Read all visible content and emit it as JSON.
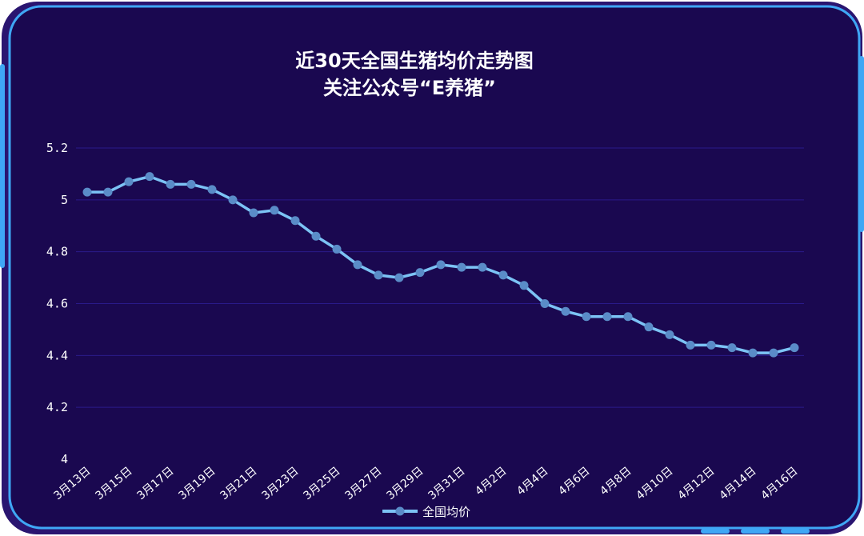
{
  "colors": {
    "background": "#1a0850",
    "frame": "#3fa7f5",
    "frame_outer": "#2a1570",
    "grid": "#2a1a8a",
    "line": "#7cc3f5",
    "marker": "#5a8cc8",
    "text": "#ffffff"
  },
  "chart_data": {
    "type": "line",
    "title": "近30天全国生猪均价走势图",
    "subtitle": "关注公众号“E养猪”",
    "xlabel": "",
    "ylabel": "",
    "ylim": [
      4,
      5.2
    ],
    "yticks": [
      "4",
      "4.2",
      "4.4",
      "4.6",
      "4.8",
      "5",
      "5.2"
    ],
    "ytick_values": [
      4,
      4.2,
      4.4,
      4.6,
      4.8,
      5,
      5.2
    ],
    "grid": true,
    "legend_position": "bottom-center",
    "categories": [
      "3月13日",
      "3月14日",
      "3月15日",
      "3月16日",
      "3月17日",
      "3月18日",
      "3月19日",
      "3月20日",
      "3月21日",
      "3月22日",
      "3月23日",
      "3月24日",
      "3月25日",
      "3月26日",
      "3月27日",
      "3月28日",
      "3月29日",
      "3月30日",
      "3月31日",
      "4月1日",
      "4月2日",
      "4月3日",
      "4月4日",
      "4月5日",
      "4月6日",
      "4月7日",
      "4月8日",
      "4月9日",
      "4月10日",
      "4月11日",
      "4月12日",
      "4月13日",
      "4月14日",
      "4月15日",
      "4月16日"
    ],
    "x_tick_labels": [
      "3月13日",
      "3月15日",
      "3月17日",
      "3月19日",
      "3月21日",
      "3月23日",
      "3月25日",
      "3月27日",
      "3月29日",
      "3月31日",
      "4月2日",
      "4月4日",
      "4月6日",
      "4月8日",
      "4月10日",
      "4月12日",
      "4月14日",
      "4月16日"
    ],
    "series": [
      {
        "name": "全国均价",
        "values": [
          5.03,
          5.03,
          5.07,
          5.09,
          5.06,
          5.06,
          5.04,
          5.0,
          4.95,
          4.96,
          4.92,
          4.86,
          4.81,
          4.75,
          4.71,
          4.7,
          4.72,
          4.75,
          4.74,
          4.74,
          4.71,
          4.67,
          4.6,
          4.57,
          4.55,
          4.55,
          4.55,
          4.51,
          4.48,
          4.44,
          4.44,
          4.43,
          4.41,
          4.41,
          4.43
        ]
      }
    ]
  }
}
